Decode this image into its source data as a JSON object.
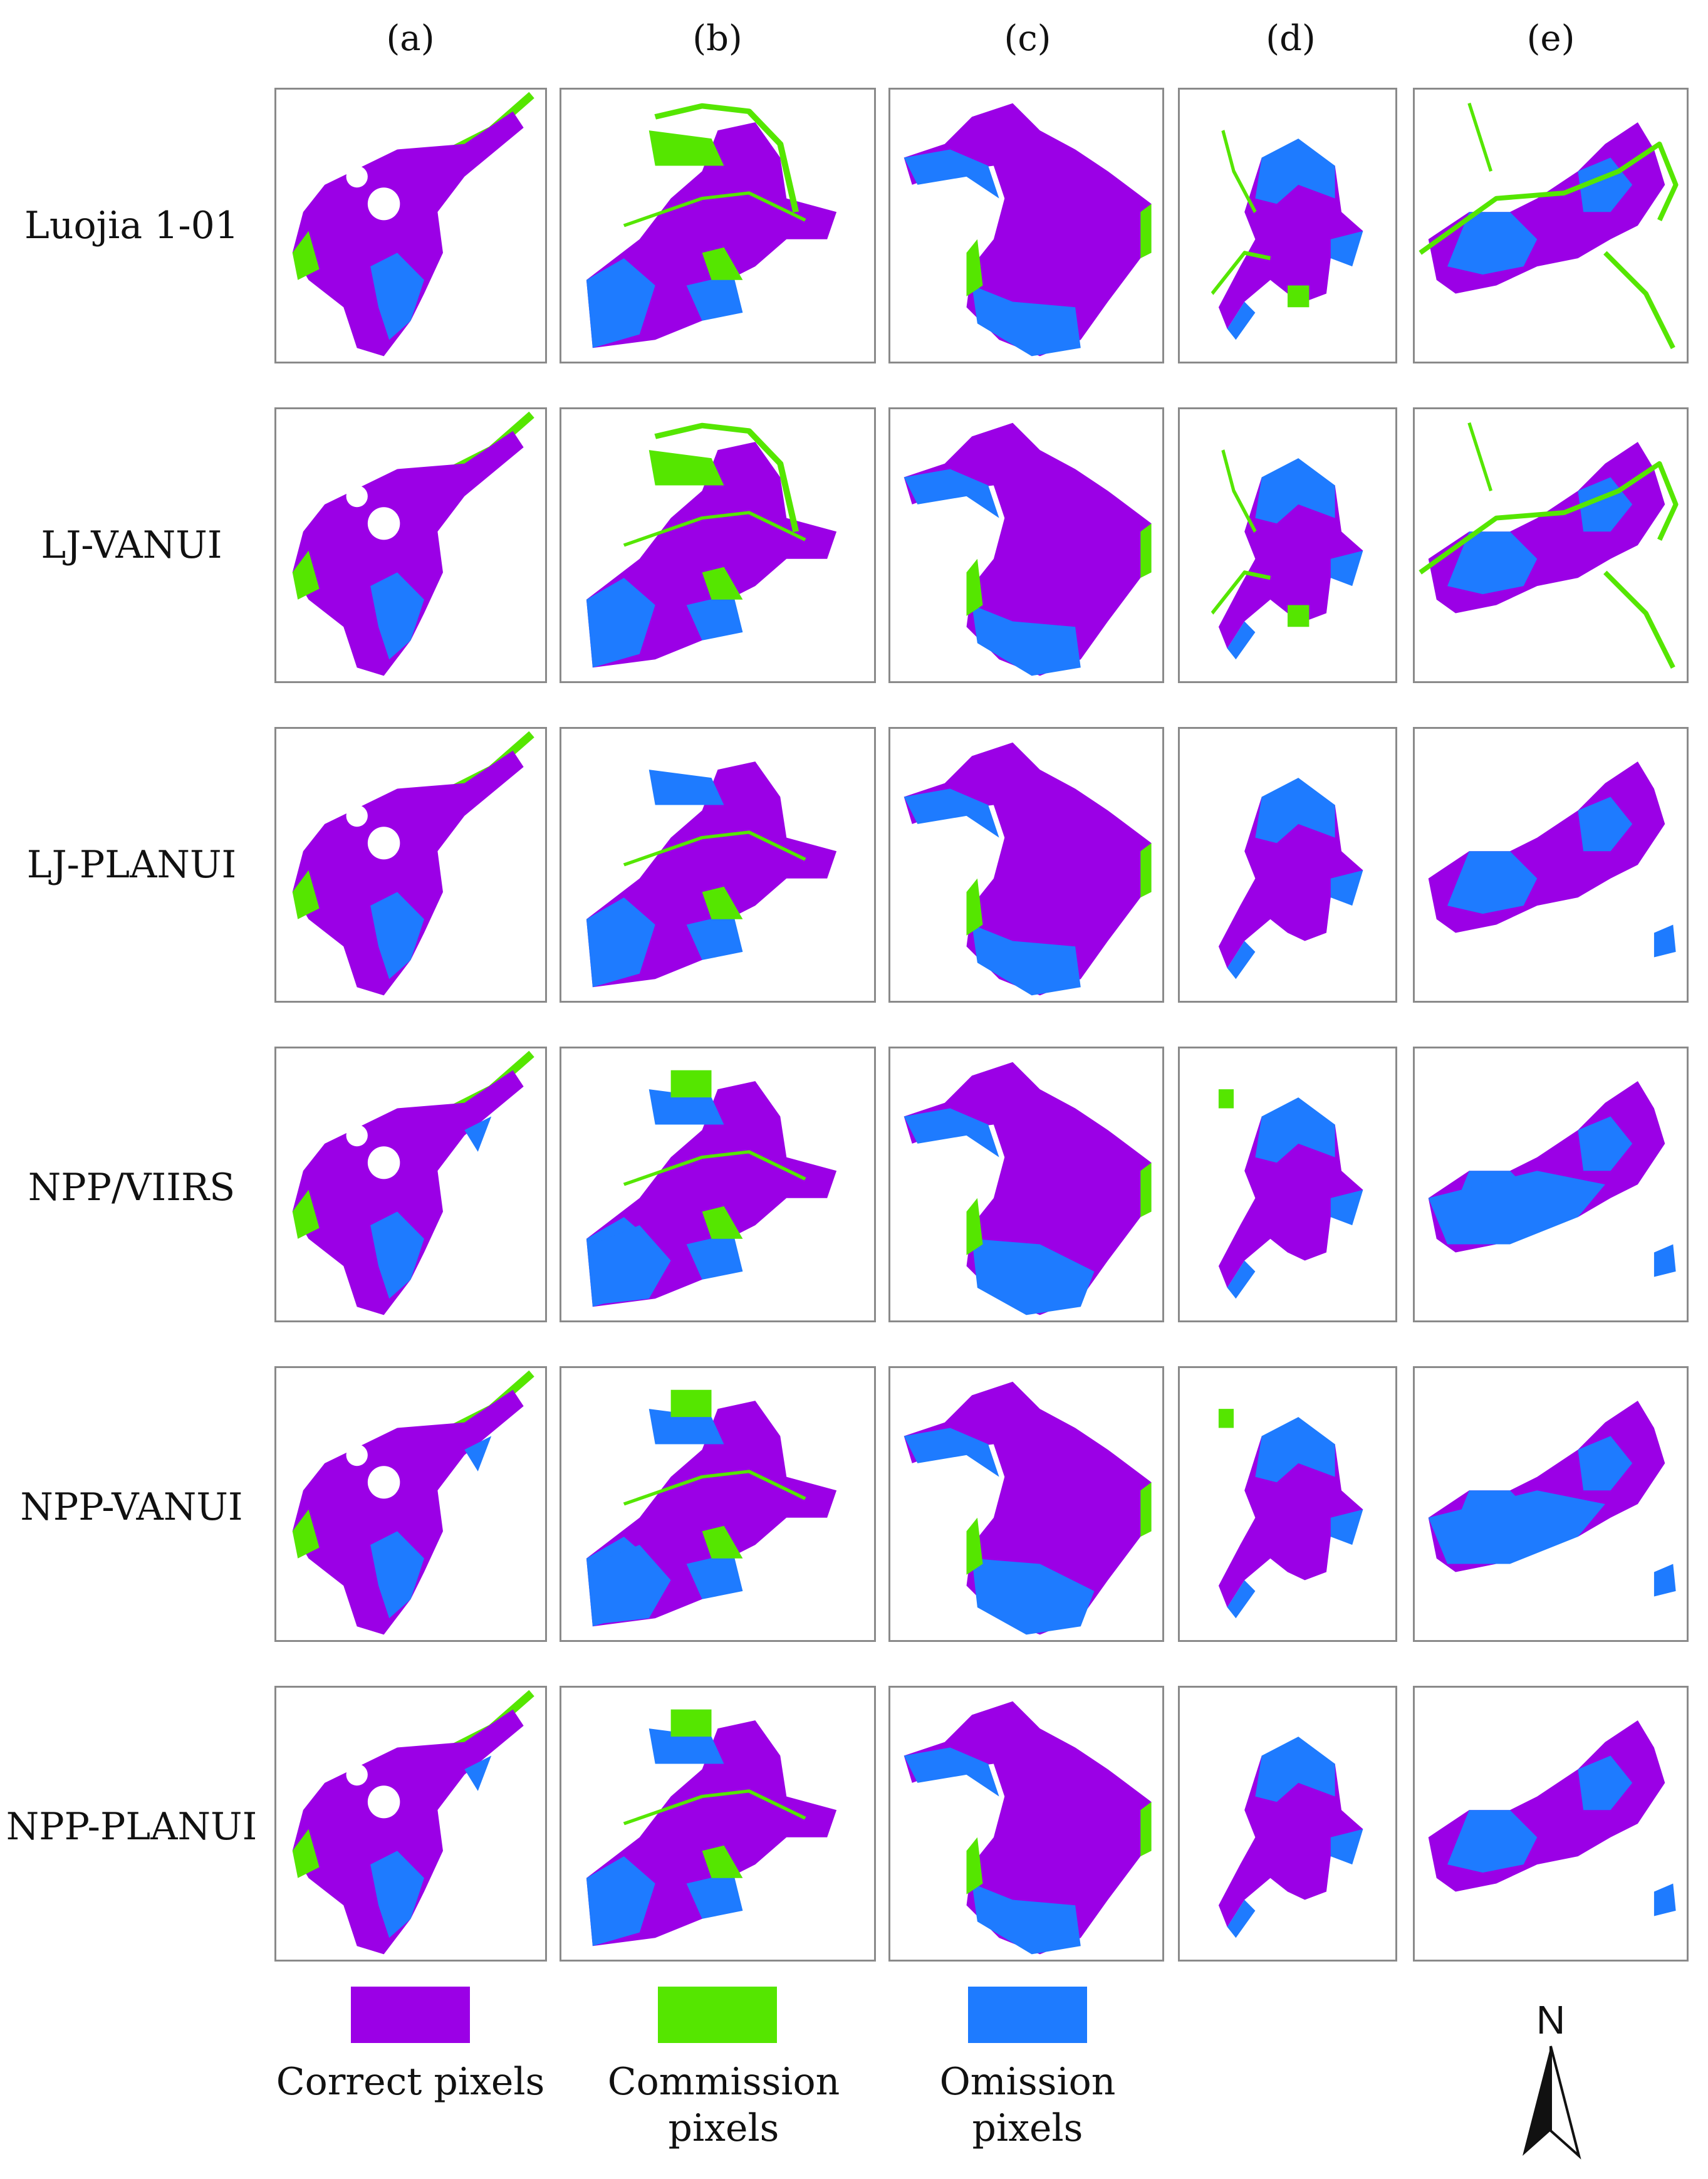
{
  "columns": [
    "(a)",
    "(b)",
    "(c)",
    "(d)",
    "(e)"
  ],
  "rows": [
    "Luojia 1-01",
    "LJ-VANUI",
    "LJ-PLANUI",
    "NPP/VIIRS",
    "NPP-VANUI",
    "NPP-PLANUI"
  ],
  "legend": [
    {
      "label": "Correct pixels",
      "color": "#9B00E6"
    },
    {
      "label": "Commission pixels",
      "color": "#55E600"
    },
    {
      "label": "Omission pixels",
      "color": "#1E7BFF"
    }
  ],
  "colors": {
    "correct": "#9B00E6",
    "commission": "#55E600",
    "omission": "#1E7BFF",
    "frame": "#8a8a8a"
  },
  "north_arrow": {
    "label": "N"
  }
}
